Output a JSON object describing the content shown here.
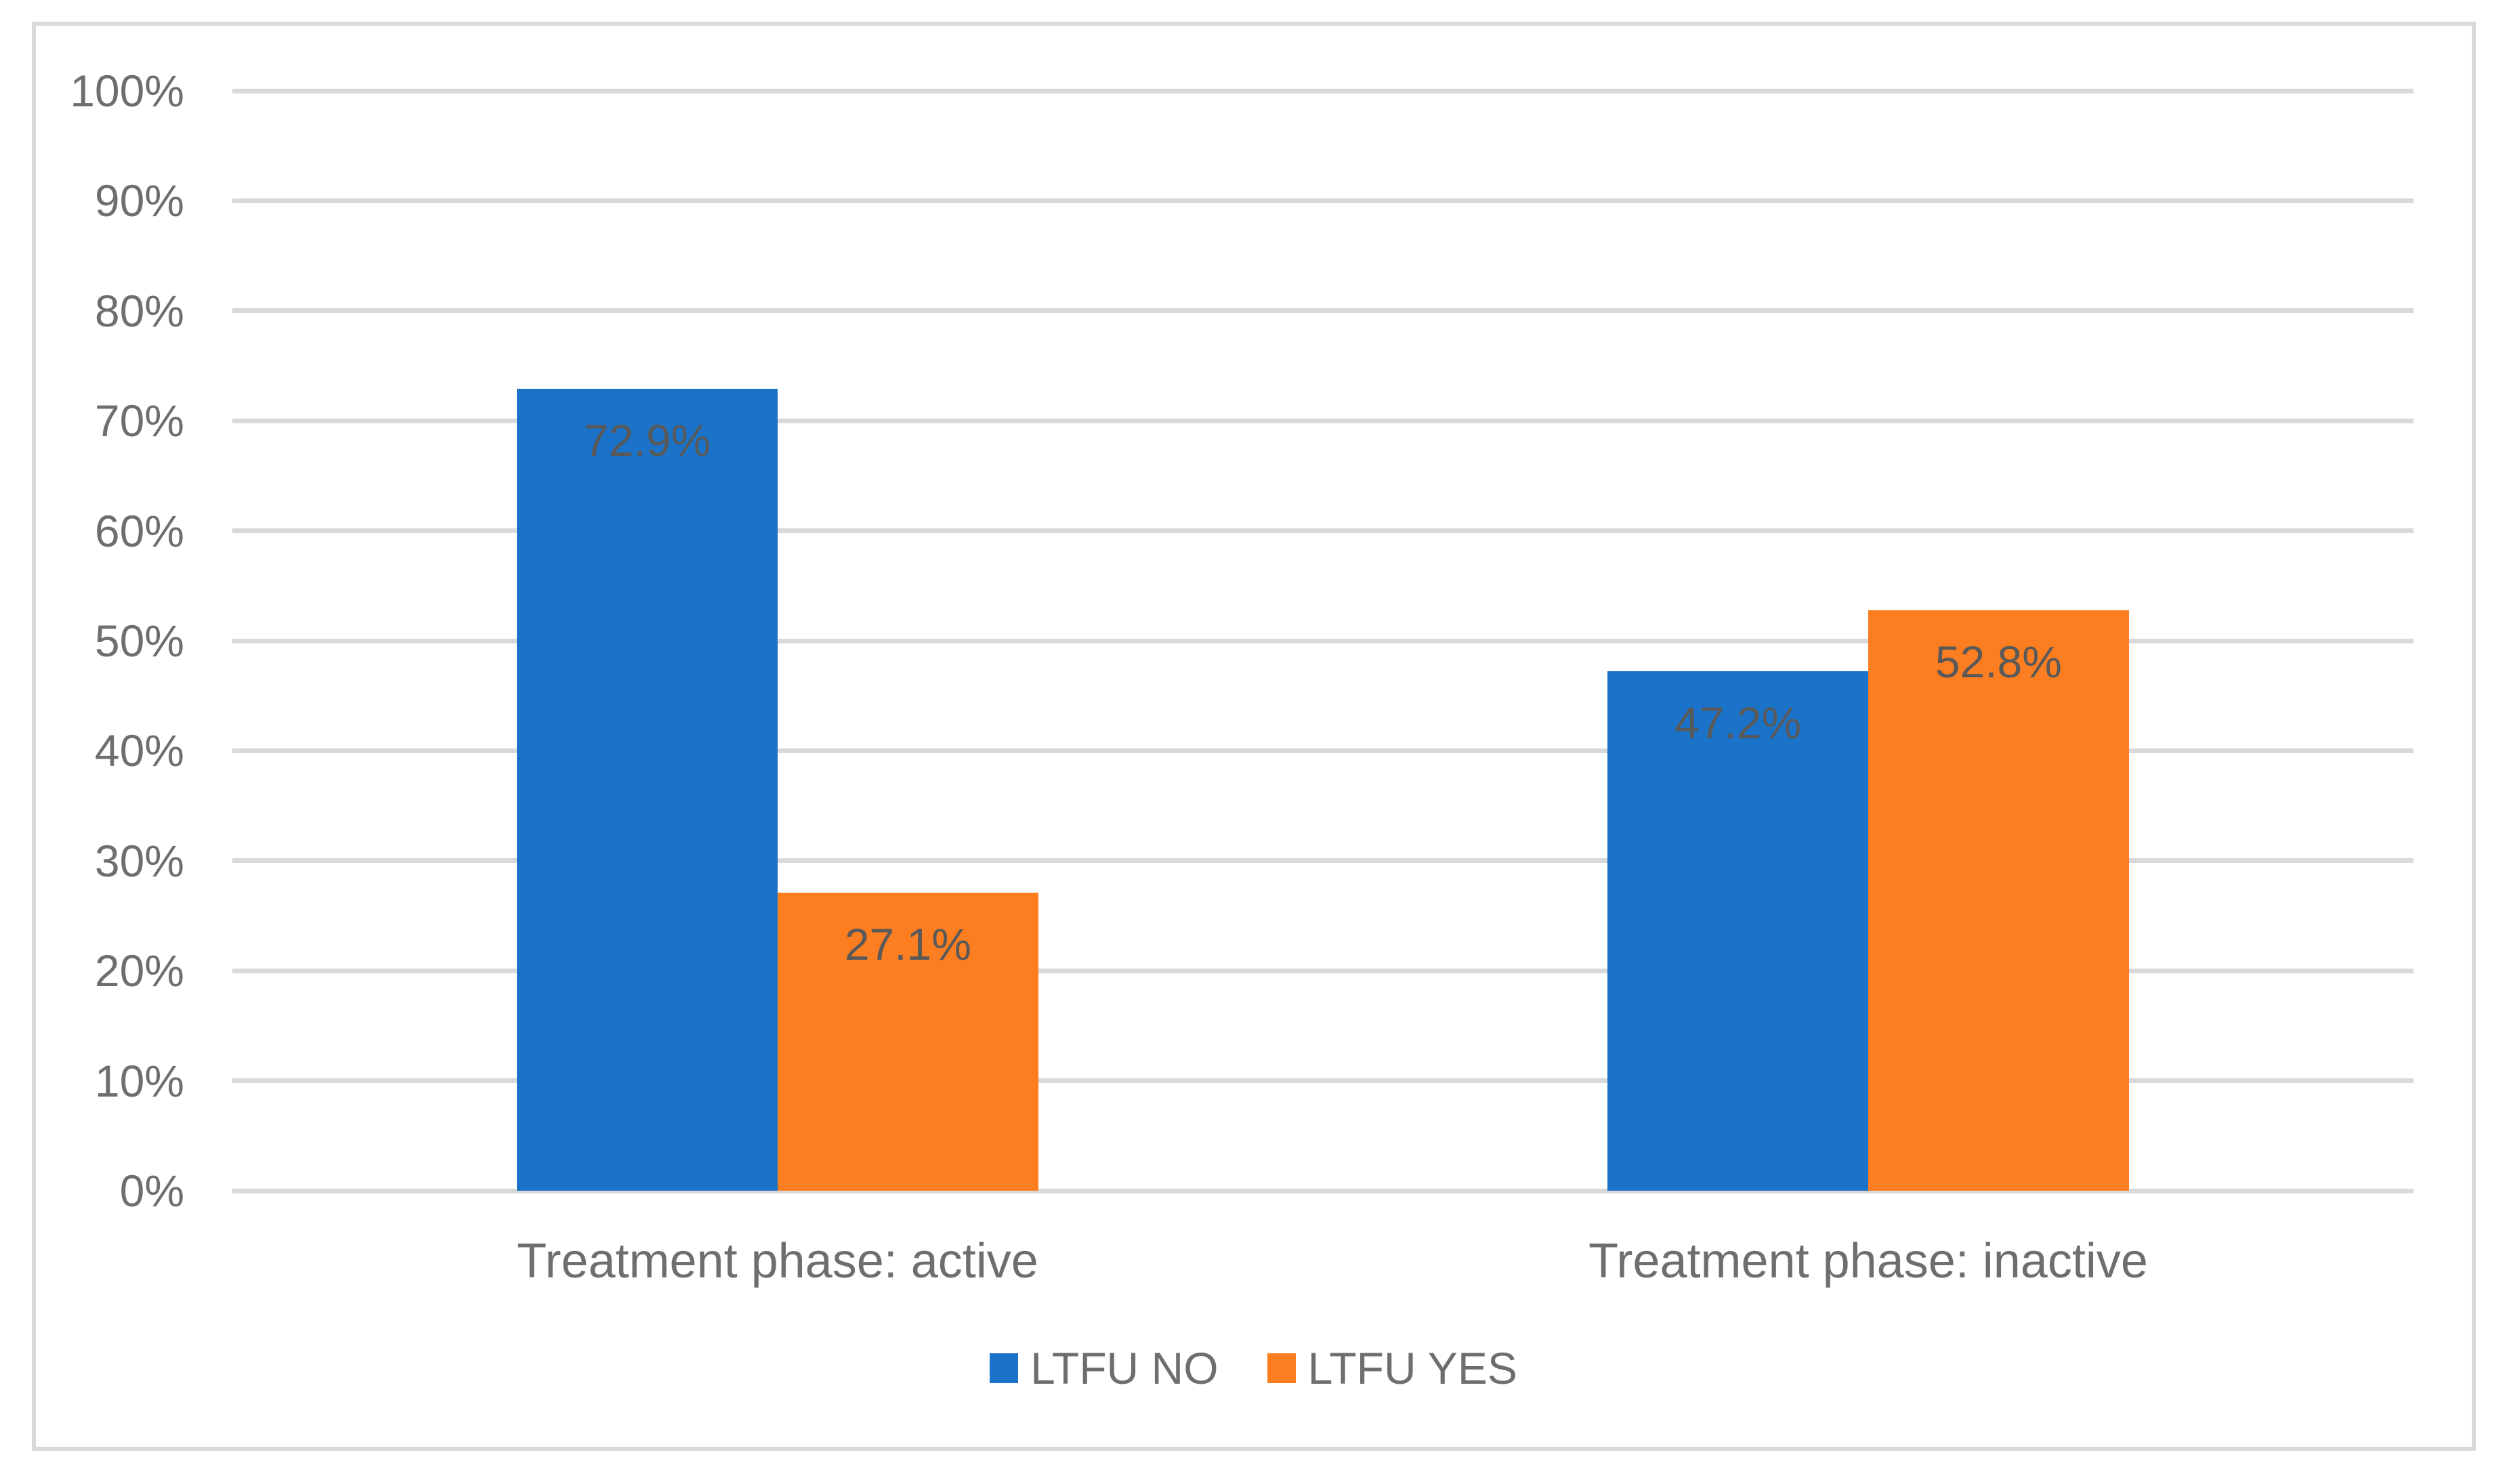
{
  "chart_data": {
    "type": "bar",
    "title": "",
    "categories": [
      "Treatment phase: active",
      "Treatment phase: inactive"
    ],
    "series": [
      {
        "name": "LTFU NO",
        "color": "#1A73C8",
        "values": [
          72.9,
          47.2
        ],
        "labels": [
          "72.9%",
          "47.2%"
        ]
      },
      {
        "name": "LTFU YES",
        "color": "#FC7E20",
        "values": [
          27.1,
          52.8
        ],
        "labels": [
          "27.1%",
          "52.8%"
        ]
      }
    ],
    "y_axis": {
      "min": 0,
      "max": 100,
      "step": 10,
      "tick_labels": [
        "0%",
        "10%",
        "20%",
        "30%",
        "40%",
        "50%",
        "60%",
        "70%",
        "80%",
        "90%",
        "100%"
      ]
    },
    "grid": true,
    "legend_position": "bottom",
    "bar_gap_within_group": 0
  },
  "style": {
    "bar_color_ltfu_no": "#1A73C8",
    "bar_color_ltfu_yes": "#FC7E20",
    "gridline_color": "#D9D9D9",
    "frame_border_color": "#D9D9D9",
    "axis_text_color": "#6E6E6E",
    "data_label_color": "#595959",
    "background_color": "#FFFFFF"
  }
}
